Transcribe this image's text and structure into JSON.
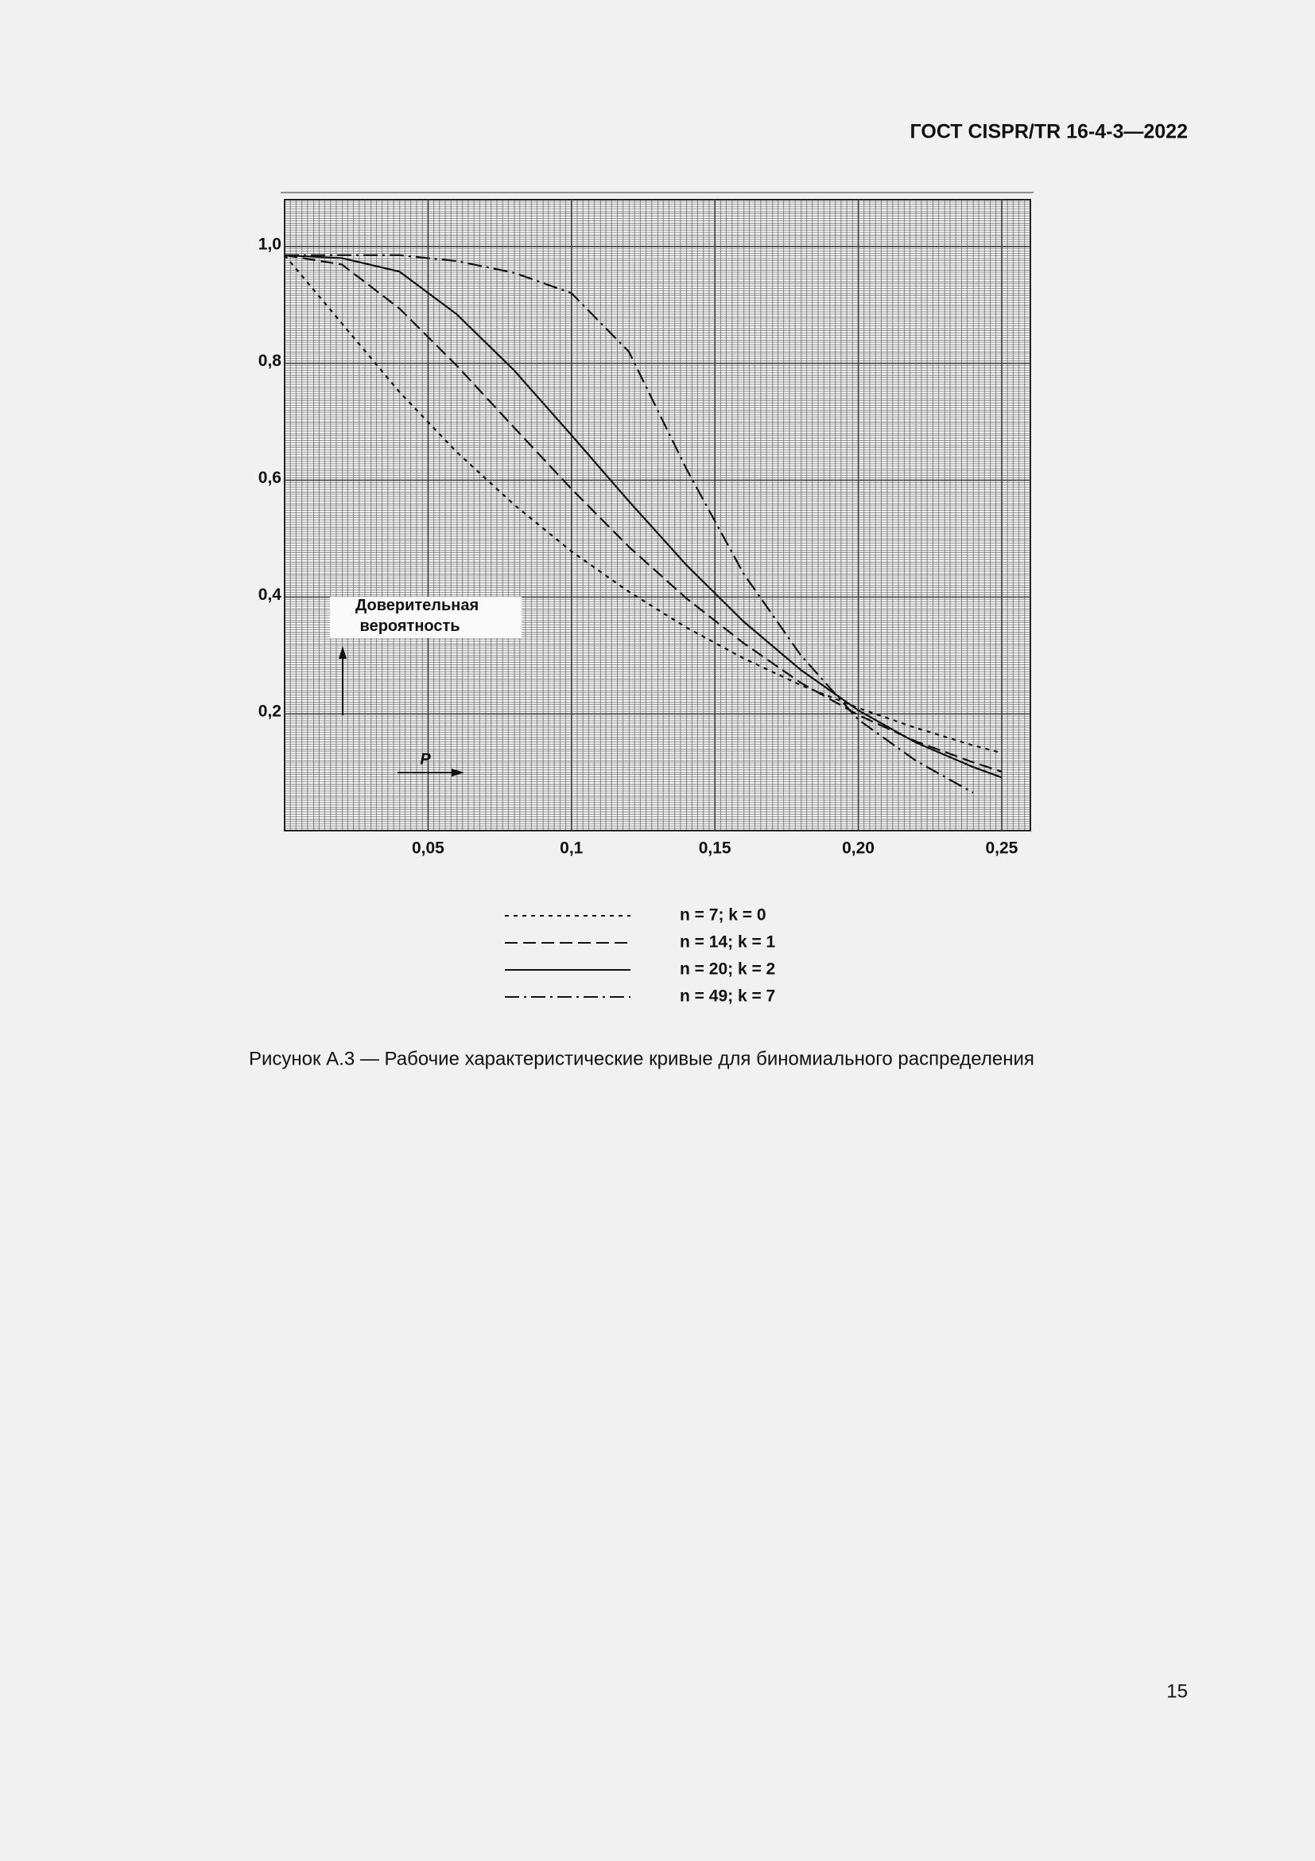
{
  "header": {
    "title": "ГОСТ CISPR/TR 16-4-3—2022"
  },
  "chart_data": {
    "type": "line",
    "y_label": "Доверительная вероятность",
    "x_label": "P",
    "x": [
      0,
      0.02,
      0.04,
      0.06,
      0.08,
      0.1,
      0.12,
      0.14,
      0.16,
      0.18,
      0.2,
      0.22,
      0.24,
      0.25
    ],
    "series": [
      {
        "name": "n = 7; k = 0",
        "color": "#111111",
        "dash": "5 6",
        "values": [
          0.985,
          0.868,
          0.751,
          0.648,
          0.558,
          0.478,
          0.409,
          0.348,
          0.295,
          0.249,
          0.21,
          0.176,
          0.146,
          0.133
        ]
      },
      {
        "name": "n = 14; k = 1",
        "color": "#111111",
        "dash": "16 7",
        "values": [
          0.985,
          0.969,
          0.894,
          0.796,
          0.69,
          0.585,
          0.486,
          0.398,
          0.321,
          0.253,
          0.198,
          0.153,
          0.117,
          0.101
        ]
      },
      {
        "name": "n = 20; k = 2",
        "color": "#111111",
        "dash": "none",
        "values": [
          0.985,
          0.98,
          0.957,
          0.884,
          0.788,
          0.677,
          0.564,
          0.455,
          0.358,
          0.275,
          0.206,
          0.151,
          0.109,
          0.091
        ]
      },
      {
        "name": "n = 49; k = 7",
        "color": "#111111",
        "dash": "18 6 3 6",
        "values": [
          0.985,
          0.985,
          0.985,
          0.975,
          0.955,
          0.92,
          0.82,
          0.62,
          0.44,
          0.3,
          0.19,
          0.12,
          0.065,
          null
        ]
      }
    ],
    "xlim": [
      0,
      0.26
    ],
    "ylim": [
      0,
      1.08
    ],
    "xticks": [
      {
        "value": 0.05,
        "label": "0,05"
      },
      {
        "value": 0.1,
        "label": "0,1"
      },
      {
        "value": 0.15,
        "label": "0,15"
      },
      {
        "value": 0.2,
        "label": "0,20"
      },
      {
        "value": 0.25,
        "label": "0,25"
      }
    ],
    "yticks": [
      {
        "value": 0.2,
        "label": "0,2"
      },
      {
        "value": 0.4,
        "label": "0,4"
      },
      {
        "value": 0.6,
        "label": "0,6"
      },
      {
        "value": 0.8,
        "label": "0,8"
      },
      {
        "value": 1.0,
        "label": "1,0"
      }
    ],
    "grid": true
  },
  "caption": "Рисунок А.3 — Рабочие характеристические кривые для биномиального распределения",
  "page_number": "15"
}
